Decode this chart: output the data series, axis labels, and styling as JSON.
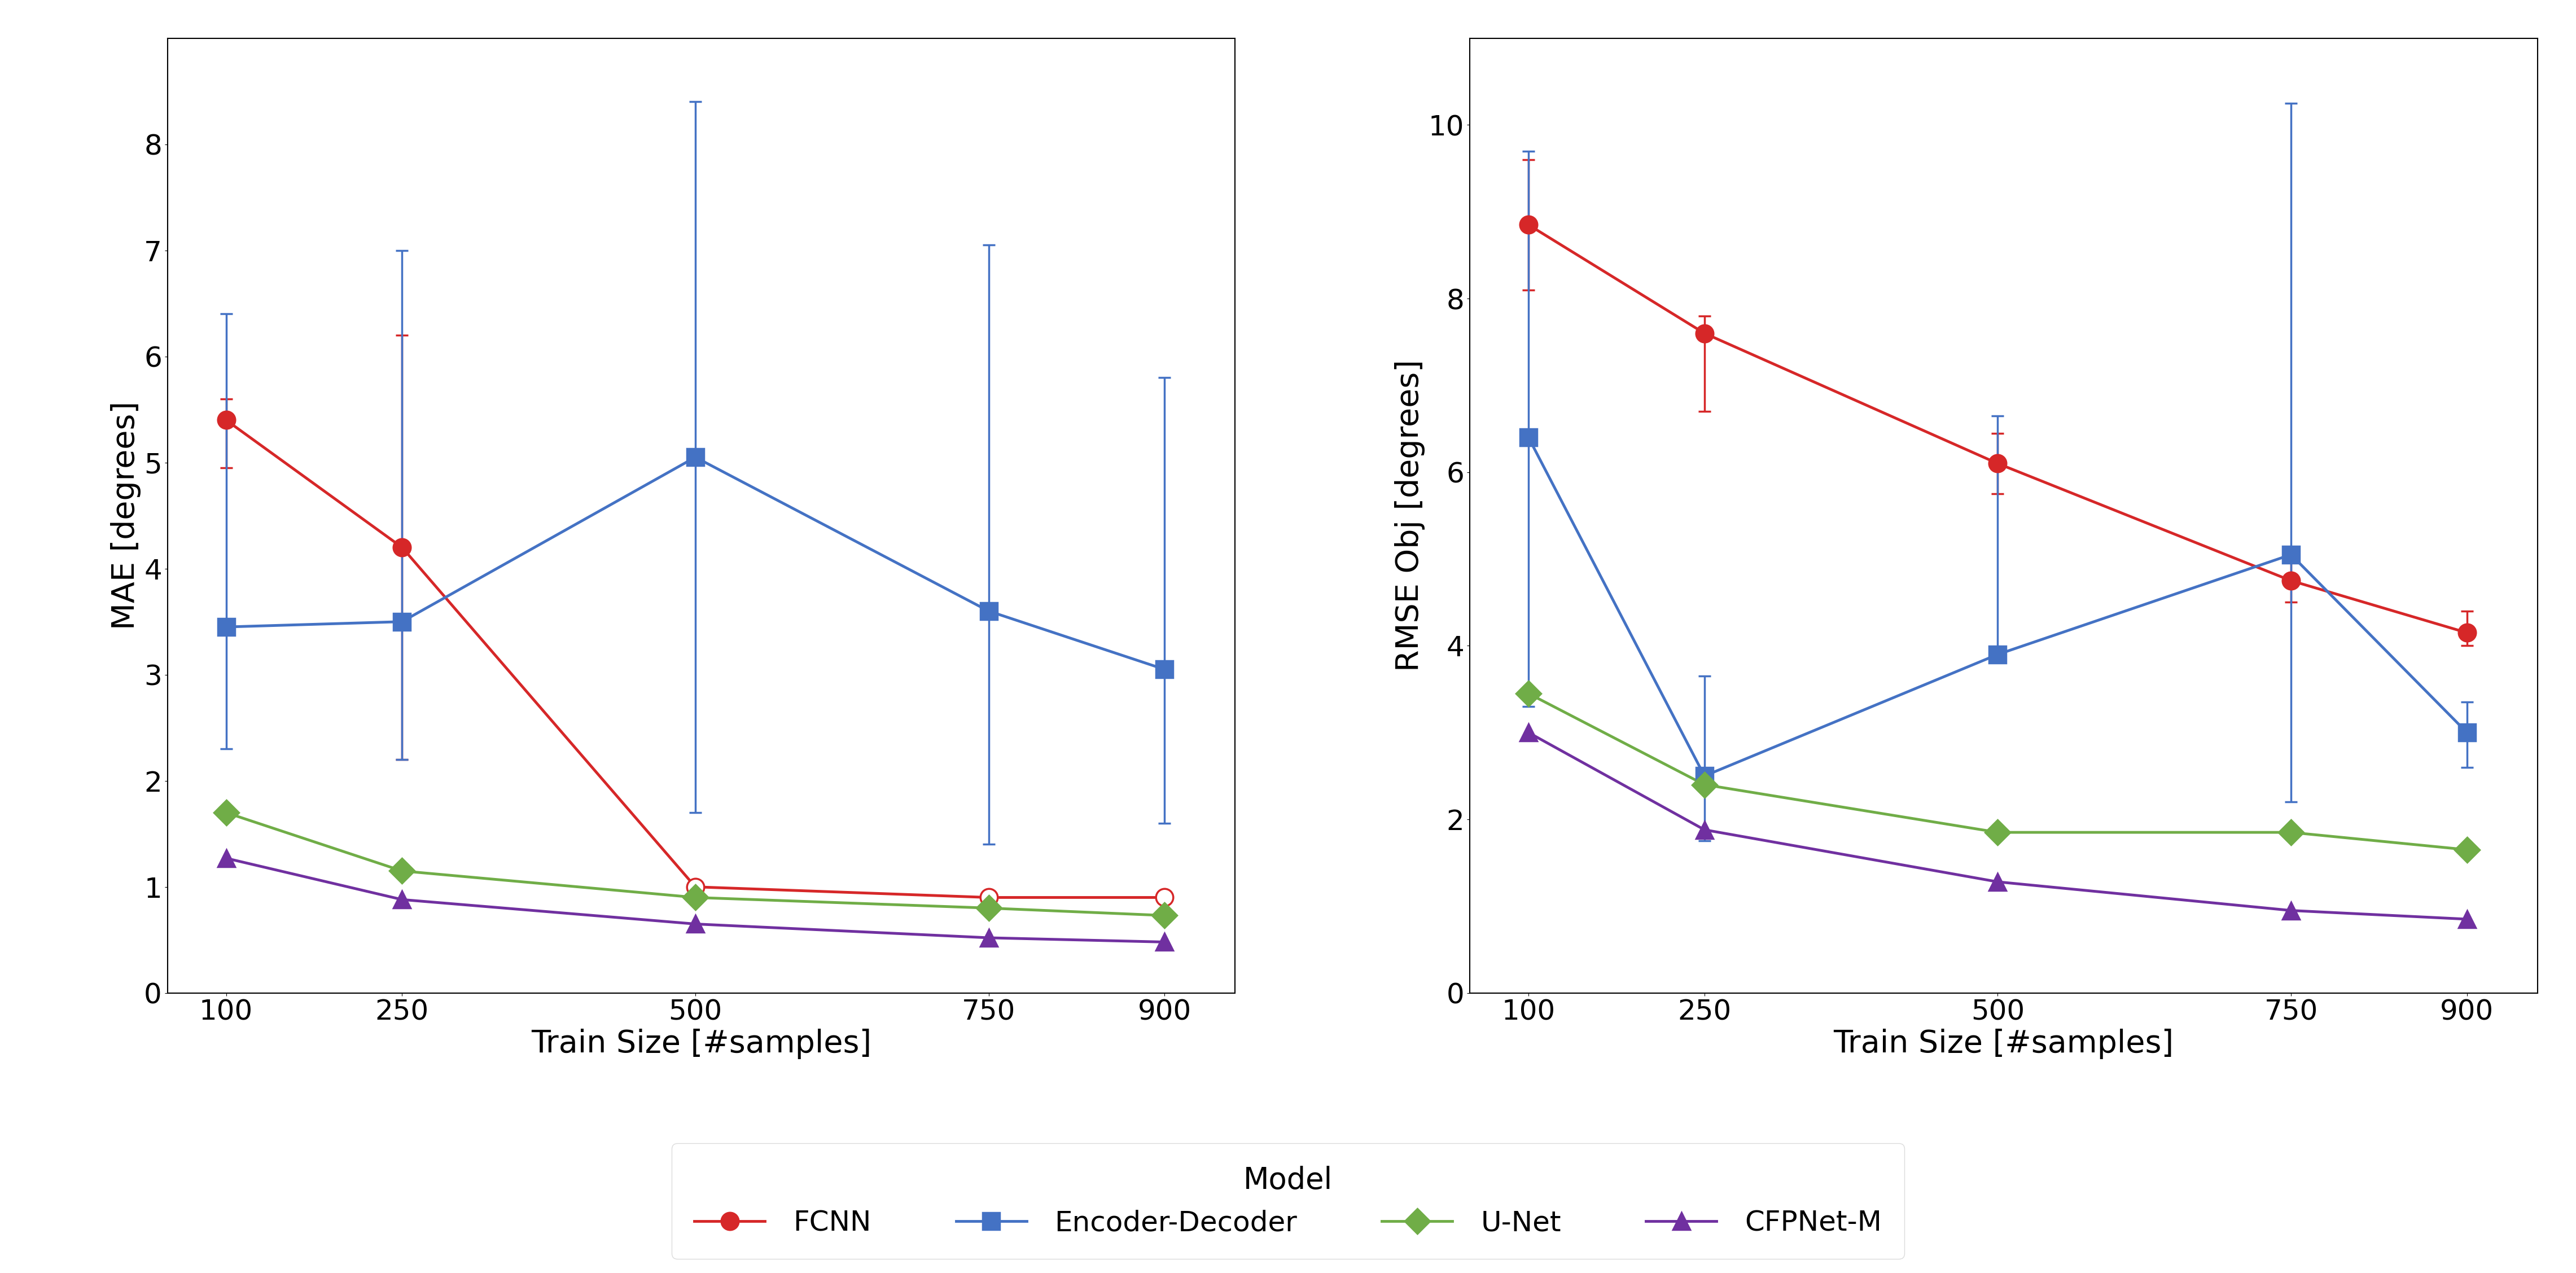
{
  "train_sizes": [
    100,
    250,
    500,
    750,
    900
  ],
  "mae": {
    "FCNN": {
      "mean": [
        5.4,
        4.2,
        1.0,
        0.9,
        0.9
      ],
      "yerr_lo": [
        0.45,
        2.0,
        0.0,
        0.0,
        0.0
      ],
      "yerr_hi": [
        0.2,
        2.0,
        0.0,
        0.0,
        0.0
      ],
      "filled": [
        true,
        true,
        false,
        false,
        false
      ]
    },
    "Encoder-Decoder": {
      "mean": [
        3.45,
        3.5,
        5.05,
        3.6,
        3.05
      ],
      "yerr_lo": [
        1.15,
        1.3,
        3.35,
        2.2,
        1.45
      ],
      "yerr_hi": [
        2.95,
        3.5,
        3.35,
        3.45,
        2.75
      ],
      "filled": [
        true,
        true,
        true,
        true,
        true
      ]
    },
    "U-Net": {
      "mean": [
        1.7,
        1.15,
        0.9,
        0.8,
        0.73
      ],
      "yerr_lo": [
        0.0,
        0.0,
        0.0,
        0.0,
        0.0
      ],
      "yerr_hi": [
        0.0,
        0.0,
        0.0,
        0.0,
        0.0
      ],
      "filled": [
        true,
        true,
        true,
        true,
        true
      ]
    },
    "CFPNet-M": {
      "mean": [
        1.27,
        0.88,
        0.65,
        0.52,
        0.48
      ],
      "yerr_lo": [
        0.0,
        0.0,
        0.0,
        0.0,
        0.0
      ],
      "yerr_hi": [
        0.0,
        0.0,
        0.0,
        0.0,
        0.0
      ],
      "filled": [
        true,
        true,
        true,
        true,
        true
      ]
    }
  },
  "rmse": {
    "FCNN": {
      "mean": [
        8.85,
        7.6,
        6.1,
        4.75,
        4.15
      ],
      "yerr_lo": [
        0.75,
        0.9,
        0.35,
        0.25,
        0.15
      ],
      "yerr_hi": [
        0.75,
        0.2,
        0.35,
        0.25,
        0.25
      ],
      "filled": [
        true,
        true,
        true,
        true,
        true
      ]
    },
    "Encoder-Decoder": {
      "mean": [
        6.4,
        2.5,
        3.9,
        5.05,
        3.0
      ],
      "yerr_lo": [
        3.1,
        0.75,
        0.0,
        2.85,
        0.4
      ],
      "yerr_hi": [
        3.3,
        1.15,
        2.75,
        5.2,
        0.35
      ],
      "filled": [
        true,
        true,
        true,
        true,
        true
      ]
    },
    "U-Net": {
      "mean": [
        3.45,
        2.4,
        1.85,
        1.85,
        1.65
      ],
      "yerr_lo": [
        0.0,
        0.0,
        0.0,
        0.0,
        0.0
      ],
      "yerr_hi": [
        0.0,
        0.0,
        0.0,
        0.0,
        0.0
      ],
      "filled": [
        true,
        true,
        true,
        true,
        true
      ]
    },
    "CFPNet-M": {
      "mean": [
        3.0,
        1.88,
        1.28,
        0.95,
        0.85
      ],
      "yerr_lo": [
        0.0,
        0.0,
        0.0,
        0.0,
        0.0
      ],
      "yerr_hi": [
        0.0,
        0.0,
        0.0,
        0.0,
        0.0
      ],
      "filled": [
        true,
        true,
        true,
        true,
        true
      ]
    }
  },
  "colors": {
    "FCNN": "#d62728",
    "Encoder-Decoder": "#4472c4",
    "U-Net": "#70ad47",
    "CFPNet-M": "#7030a0"
  },
  "markers": {
    "FCNN": "o",
    "Encoder-Decoder": "s",
    "U-Net": "D",
    "CFPNet-M": "^"
  },
  "ylabel_left": "MAE [degrees]",
  "ylabel_right": "RMSE Obj [degrees]",
  "xlabel": "Train Size [#samples]",
  "legend_title": "Model",
  "ylim_left": [
    0,
    9
  ],
  "ylim_right": [
    0,
    11
  ],
  "yticks_left": [
    0,
    1,
    2,
    3,
    4,
    5,
    6,
    7,
    8
  ],
  "yticks_right": [
    0,
    2,
    4,
    6,
    8,
    10
  ],
  "markersize": 22,
  "linewidth": 3.5,
  "capsize": 8,
  "elinewidth": 2.5,
  "markeredgewidth": 2.5,
  "tick_labelsize": 36,
  "axis_labelsize": 40,
  "legend_fontsize": 36,
  "legend_title_fontsize": 38
}
